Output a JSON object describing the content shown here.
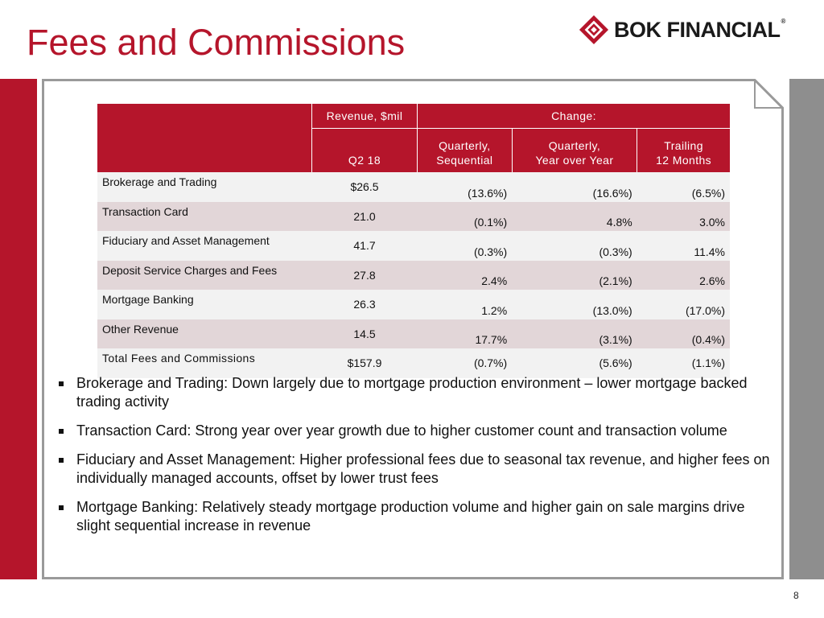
{
  "title": "Fees and Commissions",
  "logo": {
    "text": "BOK FINANCIAL",
    "mark": "®"
  },
  "colors": {
    "brand_red": "#b5152b",
    "row_alt": "#e2d6d8",
    "row_base": "#f2f2f2",
    "side_gray": "#8e8e8e"
  },
  "table": {
    "group_revenue": "Revenue, $mil",
    "group_change": "Change:",
    "col_q2": "Q2 18",
    "col_seq": [
      "Quarterly,",
      "Sequential"
    ],
    "col_yoy": [
      "Quarterly,",
      "Year over Year"
    ],
    "col_ttm": [
      "Trailing",
      "12 Months"
    ],
    "rows": [
      {
        "label": "Brokerage and Trading",
        "revenue": "$26.5",
        "seq": "(13.6%)",
        "yoy": "(16.6%)",
        "ttm": "(6.5%)"
      },
      {
        "label": "Transaction Card",
        "revenue": "21.0",
        "seq": "(0.1%)",
        "yoy": "4.8%",
        "ttm": "3.0%"
      },
      {
        "label": "Fiduciary and Asset Management",
        "revenue": "41.7",
        "seq": "(0.3%)",
        "yoy": "(0.3%)",
        "ttm": "11.4%"
      },
      {
        "label": "Deposit Service Charges and Fees",
        "revenue": "27.8",
        "seq": "2.4%",
        "yoy": "(2.1%)",
        "ttm": "2.6%"
      },
      {
        "label": "Mortgage Banking",
        "revenue": "26.3",
        "seq": "1.2%",
        "yoy": "(13.0%)",
        "ttm": "(17.0%)"
      },
      {
        "label": "Other Revenue",
        "revenue": "14.5",
        "seq": "17.7%",
        "yoy": "(3.1%)",
        "ttm": "(0.4%)"
      },
      {
        "label": "Total Fees and Commissions",
        "revenue": "$157.9",
        "seq": "(0.7%)",
        "yoy": "(5.6%)",
        "ttm": "(1.1%)"
      }
    ]
  },
  "bullets": [
    "Brokerage and Trading: Down largely due to mortgage production environment – lower mortgage backed trading activity",
    "Transaction Card: Strong year over year growth due to higher customer count and transaction volume",
    "Fiduciary and Asset Management: Higher professional fees due to seasonal tax revenue, and higher fees on individually managed accounts, offset by lower trust fees",
    "Mortgage Banking: Relatively steady mortgage production volume and higher gain on sale margins drive slight sequential increase in revenue"
  ],
  "page_number": "8"
}
